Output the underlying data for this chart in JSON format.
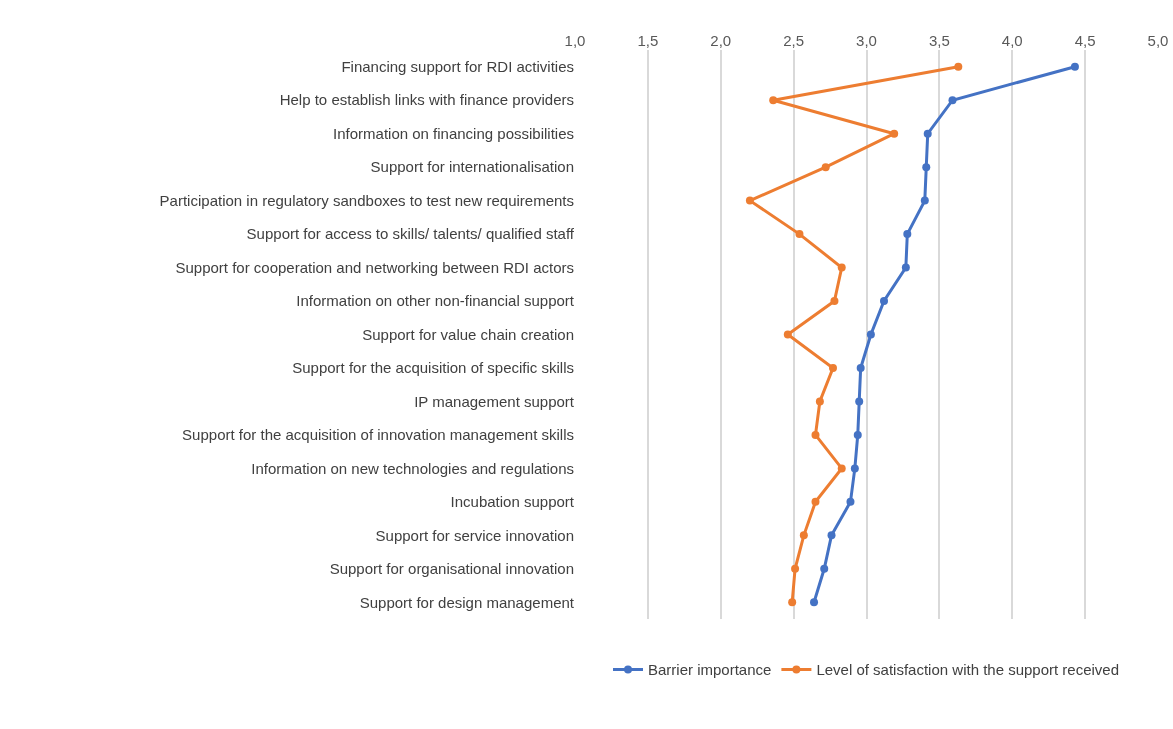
{
  "chart_data": {
    "type": "line",
    "orientation": "horizontal",
    "categories": [
      "Financing support for RDI activities",
      "Help to establish links with finance providers",
      "Information on financing possibilities",
      "Support for internationalisation",
      "Participation in regulatory sandboxes to test new requirements",
      "Support for access to skills/ talents/ qualified staff",
      "Support for cooperation and networking between RDI actors",
      "Information on other non-financial support",
      "Support for value chain creation",
      "Support for the acquisition of specific skills",
      "IP management support",
      "Support for the acquisition of innovation management skills",
      "Information on new technologies and regulations",
      "Incubation support",
      "Support for service innovation",
      "Support for organisational innovation",
      "Support for design management"
    ],
    "series": [
      {
        "name": "Barrier importance",
        "color": "#4472c4",
        "values": [
          4.43,
          3.59,
          3.42,
          3.41,
          3.4,
          3.28,
          3.27,
          3.12,
          3.03,
          2.96,
          2.95,
          2.94,
          2.92,
          2.89,
          2.76,
          2.71,
          2.64
        ]
      },
      {
        "name": "Level of satisfaction with the support received",
        "color": "#ed7d31",
        "values": [
          3.63,
          2.36,
          3.19,
          2.72,
          2.2,
          2.54,
          2.83,
          2.78,
          2.46,
          2.77,
          2.68,
          2.65,
          2.83,
          2.65,
          2.57,
          2.51,
          2.49
        ]
      }
    ],
    "xlim": [
      1,
      5
    ],
    "xticks": [
      {
        "value": 1,
        "label": "1,0"
      },
      {
        "value": 1.5,
        "label": "1,5"
      },
      {
        "value": 2,
        "label": "2,0"
      },
      {
        "value": 2.5,
        "label": "2,5"
      },
      {
        "value": 3,
        "label": "3,0"
      },
      {
        "value": 3.5,
        "label": "3,5"
      },
      {
        "value": 4,
        "label": "4,0"
      },
      {
        "value": 4.5,
        "label": "4,5"
      },
      {
        "value": 5,
        "label": "5,0"
      }
    ],
    "grid": "x",
    "legend": "bottom",
    "marker": "circle",
    "line_style": "solid"
  }
}
